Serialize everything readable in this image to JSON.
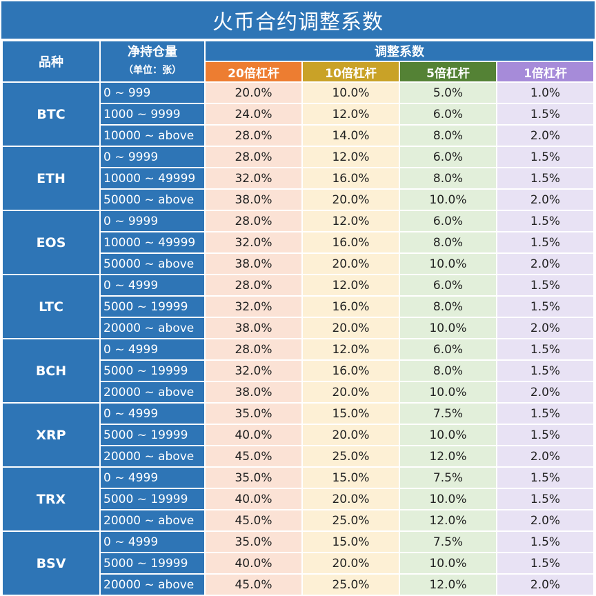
{
  "title": "火币合约调整系数",
  "headers": {
    "variety": "品种",
    "holding_line1": "净持仓量",
    "holding_line2": "（单位：张）",
    "adjust": "调整系数",
    "lev20": "20倍杠杆",
    "lev10": "10倍杠杆",
    "lev5": "5倍杠杆",
    "lev1": "1倍杠杆"
  },
  "colors": {
    "header_blue": "#2e75b6",
    "lev20": "#ed7d31",
    "lev10": "#c9a227",
    "lev5": "#548235",
    "lev1": "#a68bd9"
  },
  "coins": [
    {
      "name": "BTC",
      "rows": [
        {
          "range": "0 ~ 999",
          "v20": "20.0%",
          "v10": "10.0%",
          "v5": "5.0%",
          "v1": "1.0%"
        },
        {
          "range": "1000 ~ 9999",
          "v20": "24.0%",
          "v10": "12.0%",
          "v5": "6.0%",
          "v1": "1.5%"
        },
        {
          "range": "10000 ~ above",
          "v20": "28.0%",
          "v10": "14.0%",
          "v5": "8.0%",
          "v1": "2.0%"
        }
      ]
    },
    {
      "name": "ETH",
      "rows": [
        {
          "range": "0 ~ 9999",
          "v20": "28.0%",
          "v10": "12.0%",
          "v5": "6.0%",
          "v1": "1.5%"
        },
        {
          "range": "10000 ~ 49999",
          "v20": "32.0%",
          "v10": "16.0%",
          "v5": "8.0%",
          "v1": "1.5%"
        },
        {
          "range": "50000 ~ above",
          "v20": "38.0%",
          "v10": "20.0%",
          "v5": "10.0%",
          "v1": "2.0%"
        }
      ]
    },
    {
      "name": "EOS",
      "rows": [
        {
          "range": "0 ~ 9999",
          "v20": "28.0%",
          "v10": "12.0%",
          "v5": "6.0%",
          "v1": "1.5%"
        },
        {
          "range": "10000 ~ 49999",
          "v20": "32.0%",
          "v10": "16.0%",
          "v5": "8.0%",
          "v1": "1.5%"
        },
        {
          "range": "50000 ~ above",
          "v20": "38.0%",
          "v10": "20.0%",
          "v5": "10.0%",
          "v1": "2.0%"
        }
      ]
    },
    {
      "name": "LTC",
      "rows": [
        {
          "range": "0 ~ 4999",
          "v20": "28.0%",
          "v10": "12.0%",
          "v5": "6.0%",
          "v1": "1.5%"
        },
        {
          "range": "5000 ~ 19999",
          "v20": "32.0%",
          "v10": "16.0%",
          "v5": "8.0%",
          "v1": "1.5%"
        },
        {
          "range": "20000 ~ above",
          "v20": "38.0%",
          "v10": "20.0%",
          "v5": "10.0%",
          "v1": "2.0%"
        }
      ]
    },
    {
      "name": "BCH",
      "rows": [
        {
          "range": "0 ~ 4999",
          "v20": "28.0%",
          "v10": "12.0%",
          "v5": "6.0%",
          "v1": "1.5%"
        },
        {
          "range": "5000 ~ 19999",
          "v20": "32.0%",
          "v10": "16.0%",
          "v5": "8.0%",
          "v1": "1.5%"
        },
        {
          "range": "20000 ~ above",
          "v20": "38.0%",
          "v10": "20.0%",
          "v5": "10.0%",
          "v1": "2.0%"
        }
      ]
    },
    {
      "name": "XRP",
      "rows": [
        {
          "range": "0 ~ 4999",
          "v20": "35.0%",
          "v10": "15.0%",
          "v5": "7.5%",
          "v1": "1.5%"
        },
        {
          "range": "5000 ~ 19999",
          "v20": "40.0%",
          "v10": "20.0%",
          "v5": "10.0%",
          "v1": "1.5%"
        },
        {
          "range": "20000 ~ above",
          "v20": "45.0%",
          "v10": "25.0%",
          "v5": "12.0%",
          "v1": "2.0%"
        }
      ]
    },
    {
      "name": "TRX",
      "rows": [
        {
          "range": "0 ~ 4999",
          "v20": "35.0%",
          "v10": "15.0%",
          "v5": "7.5%",
          "v1": "1.5%"
        },
        {
          "range": "5000 ~ 19999",
          "v20": "40.0%",
          "v10": "20.0%",
          "v5": "10.0%",
          "v1": "1.5%"
        },
        {
          "range": "20000 ~ above",
          "v20": "45.0%",
          "v10": "25.0%",
          "v5": "12.0%",
          "v1": "2.0%"
        }
      ]
    },
    {
      "name": "BSV",
      "rows": [
        {
          "range": "0 ~ 4999",
          "v20": "35.0%",
          "v10": "15.0%",
          "v5": "7.5%",
          "v1": "1.5%"
        },
        {
          "range": "5000 ~ 19999",
          "v20": "40.0%",
          "v10": "20.0%",
          "v5": "10.0%",
          "v1": "1.5%"
        },
        {
          "range": "20000 ~ above",
          "v20": "45.0%",
          "v10": "25.0%",
          "v5": "12.0%",
          "v1": "2.0%"
        }
      ]
    }
  ]
}
